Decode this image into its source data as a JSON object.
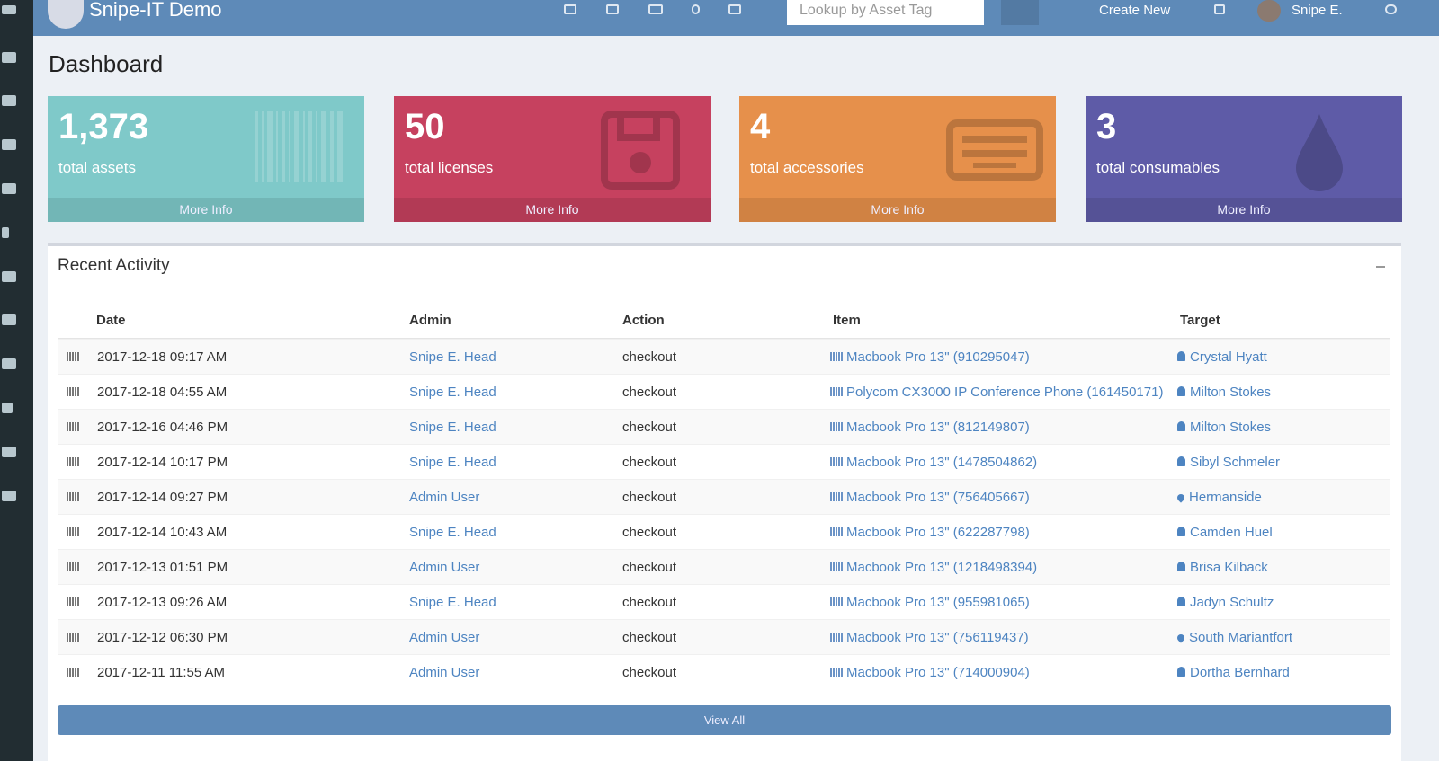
{
  "header": {
    "brand": "Snipe-IT Demo",
    "search_placeholder": "Lookup by Asset Tag",
    "create_new": "Create New",
    "user": "Snipe E."
  },
  "page_title": "Dashboard",
  "stats": [
    {
      "value": "1,373",
      "label": "total assets",
      "link": "More Info",
      "color": "#7fc9c9",
      "footer_color": "#72b6b6"
    },
    {
      "value": "50",
      "label": "total licenses",
      "link": "More Info",
      "color": "#c6415f",
      "footer_color": "#b23a55"
    },
    {
      "value": "4",
      "label": "total accessories",
      "link": "More Info",
      "color": "#e6904b",
      "footer_color": "#d08243"
    },
    {
      "value": "3",
      "label": "total consumables",
      "link": "More Info",
      "color": "#5e5ba7",
      "footer_color": "#555296"
    }
  ],
  "activity": {
    "title": "Recent Activity",
    "columns": [
      "Date",
      "Admin",
      "Action",
      "Item",
      "Target"
    ],
    "rows": [
      [
        "2017-12-18 09:17 AM",
        "Snipe E. Head",
        "checkout",
        "Macbook Pro 13\" (910295047)",
        "Crystal Hyatt"
      ],
      [
        "2017-12-18 04:55 AM",
        "Snipe E. Head",
        "checkout",
        "Polycom CX3000 IP Conference Phone (161450171)",
        "Milton Stokes"
      ],
      [
        "2017-12-16 04:46 PM",
        "Snipe E. Head",
        "checkout",
        "Macbook Pro 13\" (812149807)",
        "Milton Stokes"
      ],
      [
        "2017-12-14 10:17 PM",
        "Snipe E. Head",
        "checkout",
        "Macbook Pro 13\" (1478504862)",
        "Sibyl Schmeler"
      ],
      [
        "2017-12-14 09:27 PM",
        "Admin User",
        "checkout",
        "Macbook Pro 13\" (756405667)",
        "Hermanside"
      ],
      [
        "2017-12-14 10:43 AM",
        "Snipe E. Head",
        "checkout",
        "Macbook Pro 13\" (622287798)",
        "Camden Huel"
      ],
      [
        "2017-12-13 01:51 PM",
        "Admin User",
        "checkout",
        "Macbook Pro 13\" (1218498394)",
        "Brisa Kilback"
      ],
      [
        "2017-12-13 09:26 AM",
        "Snipe E. Head",
        "checkout",
        "Macbook Pro 13\" (955981065)",
        "Jadyn Schultz"
      ],
      [
        "2017-12-12 06:30 PM",
        "Admin User",
        "checkout",
        "Macbook Pro 13\" (756119437)",
        "South Mariantfort"
      ],
      [
        "2017-12-11 11:55 AM",
        "Admin User",
        "checkout",
        "Macbook Pro 13\" (714000904)",
        "Dortha Bernhard"
      ]
    ],
    "view_all": "View All"
  }
}
